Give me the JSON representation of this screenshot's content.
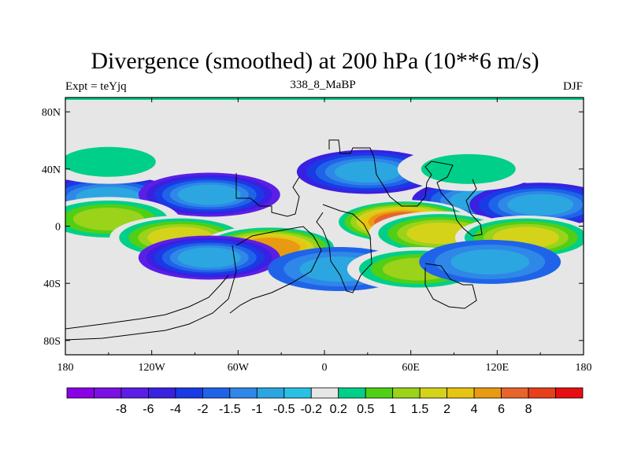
{
  "title": "Divergence (smoothed) at 200 hPa (10**6 m/s)",
  "subtitle_left": "Expt = teYjq",
  "subtitle_center": "338_8_MaBP",
  "subtitle_right": "DJF",
  "y_tick_labels": [
    "80N",
    "40N",
    "0",
    "40S",
    "80S"
  ],
  "x_tick_labels": [
    "180",
    "120W",
    "60W",
    "0",
    "60E",
    "120E",
    "180"
  ],
  "colorbar": {
    "colors": [
      "#8a00e6",
      "#7a10e6",
      "#5c1ee6",
      "#3a20e0",
      "#1a3ae6",
      "#1f64e8",
      "#2f87e8",
      "#2ba6e0",
      "#29c1e3",
      "#e6e6e6",
      "#00cf8a",
      "#4fcf16",
      "#9bd21a",
      "#d4d31a",
      "#e8c412",
      "#e89a12",
      "#e8642a",
      "#e8401a",
      "#e60e12"
    ],
    "labels": [
      "-8",
      "-6",
      "-4",
      "-2",
      "-1.5",
      "-1",
      "-0.5",
      "-0.2",
      "0.2",
      "0.5",
      "1",
      "1.5",
      "2",
      "4",
      "6",
      "8"
    ]
  },
  "chart_data": {
    "type": "contour_map",
    "variable": "Divergence (smoothed)",
    "level": "200 hPa",
    "units": "10**6 m/s",
    "experiment": "teYjq",
    "period": "338_8_MaBP",
    "season": "DJF",
    "lon_range": [
      -180,
      180
    ],
    "lat_range": [
      -90,
      90
    ],
    "contour_levels": [
      -8,
      -6,
      -4,
      -2,
      -1.5,
      -1,
      -0.5,
      -0.2,
      0.2,
      0.5,
      1,
      1.5,
      2,
      4,
      6,
      8
    ],
    "features": [
      {
        "lon": -150,
        "lat": 20,
        "value": -3
      },
      {
        "lon": -80,
        "lat": 22,
        "value": -4
      },
      {
        "lon": 30,
        "lat": 38,
        "value": -3
      },
      {
        "lon": 110,
        "lat": 18,
        "value": -2
      },
      {
        "lon": 150,
        "lat": 15,
        "value": -2
      },
      {
        "lon": -150,
        "lat": 5,
        "value": 1.5
      },
      {
        "lon": -100,
        "lat": -8,
        "value": 2
      },
      {
        "lon": -38,
        "lat": -15,
        "value": 6
      },
      {
        "lon": 55,
        "lat": 3,
        "value": 8
      },
      {
        "lon": 80,
        "lat": -5,
        "value": 2
      },
      {
        "lon": 140,
        "lat": -8,
        "value": 2
      },
      {
        "lon": -80,
        "lat": -22,
        "value": -4
      },
      {
        "lon": 10,
        "lat": -30,
        "value": -1
      },
      {
        "lon": 65,
        "lat": -30,
        "value": 1.5
      },
      {
        "lon": 115,
        "lat": -25,
        "value": -1
      },
      {
        "lon": -150,
        "lat": 45,
        "value": 0.5
      },
      {
        "lon": 100,
        "lat": 40,
        "value": 0.5
      }
    ]
  }
}
